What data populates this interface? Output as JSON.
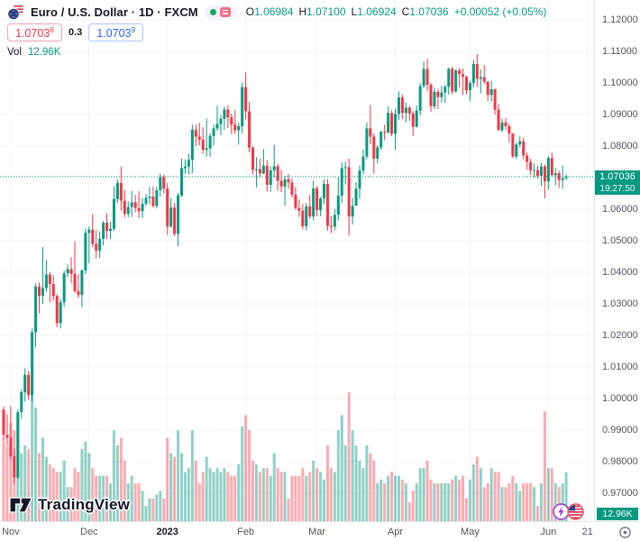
{
  "header": {
    "title_full": "Euro / U.S. Dollar · 1D · FXCM",
    "symbol": "Euro / U.S. Dollar",
    "interval": "1D",
    "exchange": "FXCM",
    "ohlc": {
      "o_label": "O",
      "o": "1.06984",
      "h_label": "H",
      "h": "1.07100",
      "l_label": "L",
      "l": "1.06924",
      "c_label": "C",
      "c": "1.07036",
      "change": "+0.00052 (+0.05%)"
    },
    "bid": {
      "value": "1.0703",
      "sup": "6"
    },
    "spread": "0.3",
    "ask": {
      "value": "1.0703",
      "sup": "9"
    },
    "vol_label": "Vol",
    "vol_value": "12.96K"
  },
  "last_price": {
    "value": "1.07036",
    "countdown": "19:27:50",
    "price": 1.07036
  },
  "volume_badge": "12.96K",
  "logo": {
    "text": "TradingView"
  },
  "event_markers": [
    {
      "type": "economic-event-lightning"
    },
    {
      "type": "economic-event-us-flag"
    }
  ],
  "colors": {
    "up": "#089981",
    "down": "#F23645",
    "vol_up": "rgba(8,153,129,0.45)",
    "vol_down": "rgba(242,54,69,0.42)",
    "grid": "#F0F3FA",
    "axis_text": "#51535F",
    "badge_bg": "#089981",
    "bid_red": "#F23645",
    "ask_blue": "#2962FF",
    "title_text": "#131722"
  },
  "chart_data": {
    "type": "candlestick",
    "symbol": "EURUSD",
    "title": "Euro / U.S. Dollar · 1D · FXCM",
    "interval": "1D",
    "has_volume_pane": true,
    "price_axis": {
      "top_price": 1.12,
      "bottom_price": 0.97,
      "tick_step": 0.01,
      "labels": [
        "1.12000",
        "1.11000",
        "1.10000",
        "1.09000",
        "1.08000",
        "1.07000",
        "1.06000",
        "1.05000",
        "1.04000",
        "1.03000",
        "1.02000",
        "1.01000",
        "1.00000",
        "0.99000",
        "0.98000",
        "0.97000"
      ]
    },
    "time_axis": {
      "ticks": [
        {
          "label": "Nov",
          "index": 2,
          "bold": false
        },
        {
          "label": "Dec",
          "index": 24,
          "bold": false
        },
        {
          "label": "2023",
          "index": 46,
          "bold": true
        },
        {
          "label": "Feb",
          "index": 68,
          "bold": false
        },
        {
          "label": "Mar",
          "index": 88,
          "bold": false
        },
        {
          "label": "Apr",
          "index": 110,
          "bold": false
        },
        {
          "label": "May",
          "index": 131,
          "bold": false
        },
        {
          "label": "Jun",
          "index": 153,
          "bold": false
        },
        {
          "label": "21",
          "index": 164,
          "bold": false
        }
      ]
    },
    "current": {
      "open": 1.06984,
      "high": 1.071,
      "low": 1.06924,
      "close": 1.07036,
      "volume_k": 12.96
    },
    "candles": [
      [
        0.9965,
        0.9975,
        0.9872,
        0.9885,
        22
      ],
      [
        0.9885,
        0.995,
        0.9853,
        0.9876,
        20
      ],
      [
        0.9876,
        0.9976,
        0.981,
        0.9817,
        26
      ],
      [
        0.9817,
        0.984,
        0.973,
        0.975,
        24
      ],
      [
        0.975,
        0.9965,
        0.9745,
        0.9957,
        28
      ],
      [
        0.9957,
        1.003,
        0.9935,
        1.002,
        18
      ],
      [
        1.002,
        1.0096,
        0.999,
        1.0075,
        20
      ],
      [
        1.0075,
        1.0088,
        0.9995,
        1.0011,
        19
      ],
      [
        1.0011,
        1.0222,
        0.999,
        1.021,
        35
      ],
      [
        1.021,
        1.0365,
        1.0163,
        1.0355,
        30
      ],
      [
        1.0355,
        1.0368,
        1.027,
        1.0325,
        18
      ],
      [
        1.0325,
        1.048,
        1.03,
        1.035,
        22
      ],
      [
        1.035,
        1.0438,
        1.0338,
        1.0393,
        17
      ],
      [
        1.0393,
        1.04,
        1.0305,
        1.0363,
        15
      ],
      [
        1.0363,
        1.039,
        1.031,
        1.0325,
        14
      ],
      [
        1.0325,
        1.033,
        1.0226,
        1.0239,
        13
      ],
      [
        1.0239,
        1.0315,
        1.0222,
        1.0305,
        13
      ],
      [
        1.0305,
        1.0405,
        1.029,
        1.0397,
        16
      ],
      [
        1.0397,
        1.0425,
        1.0385,
        1.041,
        9
      ],
      [
        1.041,
        1.0448,
        1.0365,
        1.0395,
        9
      ],
      [
        1.0395,
        1.0497,
        1.0335,
        1.034,
        14
      ],
      [
        1.034,
        1.0394,
        1.0319,
        1.0328,
        13
      ],
      [
        1.0328,
        1.041,
        1.029,
        1.0406,
        19
      ],
      [
        1.0406,
        1.0539,
        1.0395,
        1.0525,
        21
      ],
      [
        1.0525,
        1.0545,
        1.0428,
        1.0535,
        18
      ],
      [
        1.0535,
        1.0585,
        1.048,
        1.049,
        14
      ],
      [
        1.049,
        1.0533,
        1.0443,
        1.0468,
        12
      ],
      [
        1.0468,
        1.053,
        1.0445,
        1.0506,
        12
      ],
      [
        1.0506,
        1.0563,
        1.0485,
        1.0557,
        12
      ],
      [
        1.0557,
        1.0588,
        1.0505,
        1.0531,
        12
      ],
      [
        1.0531,
        1.056,
        1.0505,
        1.0538,
        10
      ],
      [
        1.0538,
        1.0673,
        1.053,
        1.0632,
        24
      ],
      [
        1.0632,
        1.0695,
        1.062,
        1.0683,
        20
      ],
      [
        1.0683,
        1.0735,
        1.0595,
        1.0627,
        22
      ],
      [
        1.0627,
        1.066,
        1.0575,
        1.0585,
        16
      ],
      [
        1.0585,
        1.0625,
        1.0575,
        1.0607,
        10
      ],
      [
        1.0607,
        1.0658,
        1.0575,
        1.0622,
        12
      ],
      [
        1.0622,
        1.0645,
        1.059,
        1.0604,
        10
      ],
      [
        1.0604,
        1.0657,
        1.0572,
        1.0594,
        10
      ],
      [
        1.0594,
        1.0635,
        1.0572,
        1.0617,
        8
      ],
      [
        1.0617,
        1.0648,
        1.061,
        1.0636,
        4
      ],
      [
        1.0636,
        1.067,
        1.0615,
        1.064,
        6
      ],
      [
        1.064,
        1.0672,
        1.0605,
        1.061,
        6
      ],
      [
        1.061,
        1.0671,
        1.0603,
        1.066,
        7
      ],
      [
        1.066,
        1.0713,
        1.064,
        1.0702,
        8
      ],
      [
        1.0702,
        1.071,
        1.065,
        1.0665,
        6
      ],
      [
        1.0665,
        1.0683,
        1.0519,
        1.0545,
        22
      ],
      [
        1.0545,
        1.0635,
        1.0542,
        1.0605,
        18
      ],
      [
        1.0605,
        1.062,
        1.0515,
        1.0522,
        17
      ],
      [
        1.0522,
        1.0652,
        1.0483,
        1.0644,
        24
      ],
      [
        1.0644,
        1.076,
        1.0639,
        1.073,
        18
      ],
      [
        1.073,
        1.0758,
        1.0712,
        1.0735,
        13
      ],
      [
        1.0735,
        1.0776,
        1.071,
        1.0756,
        14
      ],
      [
        1.0756,
        1.0868,
        1.0714,
        1.0852,
        24
      ],
      [
        1.0852,
        1.0868,
        1.08,
        1.083,
        16
      ],
      [
        1.083,
        1.0874,
        1.0802,
        1.082,
        10
      ],
      [
        1.082,
        1.086,
        1.0775,
        1.0788,
        13
      ],
      [
        1.0788,
        1.0887,
        1.0766,
        1.0793,
        17
      ],
      [
        1.0793,
        1.084,
        1.0766,
        1.0832,
        14
      ],
      [
        1.0832,
        1.0868,
        1.0802,
        1.0856,
        13
      ],
      [
        1.0856,
        1.0927,
        1.0848,
        1.087,
        14
      ],
      [
        1.087,
        1.0898,
        1.0835,
        1.0886,
        13
      ],
      [
        1.0886,
        1.0925,
        1.0852,
        1.0916,
        14
      ],
      [
        1.0916,
        1.093,
        1.0857,
        1.0891,
        13
      ],
      [
        1.0891,
        1.0903,
        1.0838,
        1.0868,
        12
      ],
      [
        1.0868,
        1.0913,
        1.0839,
        1.085,
        12
      ],
      [
        1.085,
        1.0874,
        1.0804,
        1.0863,
        15
      ],
      [
        1.0863,
        1.1001,
        1.084,
        1.0987,
        25
      ],
      [
        1.0987,
        1.1033,
        1.0885,
        1.091,
        28
      ],
      [
        1.091,
        1.094,
        1.078,
        1.0795,
        24
      ],
      [
        1.0795,
        1.08,
        1.071,
        1.0725,
        16
      ],
      [
        1.0725,
        1.0765,
        1.0669,
        1.0727,
        15
      ],
      [
        1.0727,
        1.076,
        1.07,
        1.0713,
        13
      ],
      [
        1.0713,
        1.0791,
        1.0711,
        1.0738,
        14
      ],
      [
        1.0738,
        1.0755,
        1.0656,
        1.0677,
        14
      ],
      [
        1.0677,
        1.0735,
        1.0655,
        1.0723,
        12
      ],
      [
        1.0723,
        1.0804,
        1.07,
        1.0736,
        18
      ],
      [
        1.0736,
        1.0744,
        1.0659,
        1.069,
        14
      ],
      [
        1.069,
        1.0724,
        1.0654,
        1.0672,
        13
      ],
      [
        1.0672,
        1.0706,
        1.0612,
        1.0695,
        13
      ],
      [
        1.0695,
        1.0712,
        1.0665,
        1.0685,
        6
      ],
      [
        1.0685,
        1.0697,
        1.0636,
        1.0646,
        12
      ],
      [
        1.0646,
        1.067,
        1.0598,
        1.0604,
        12
      ],
      [
        1.0604,
        1.063,
        1.0575,
        1.0595,
        12
      ],
      [
        1.0595,
        1.0618,
        1.0536,
        1.0546,
        14
      ],
      [
        1.0546,
        1.062,
        1.0533,
        1.0609,
        12
      ],
      [
        1.0609,
        1.0645,
        1.057,
        1.0577,
        13
      ],
      [
        1.0577,
        1.0691,
        1.0565,
        1.0666,
        16
      ],
      [
        1.0666,
        1.0674,
        1.0577,
        1.0597,
        14
      ],
      [
        1.0597,
        1.0639,
        1.0577,
        1.0634,
        13
      ],
      [
        1.0634,
        1.0694,
        1.0616,
        1.068,
        11
      ],
      [
        1.068,
        1.0695,
        1.0532,
        1.0547,
        20
      ],
      [
        1.0547,
        1.0578,
        1.0524,
        1.0545,
        14
      ],
      [
        1.0545,
        1.0601,
        1.0533,
        1.0582,
        13
      ],
      [
        1.0582,
        1.0701,
        1.0564,
        1.0643,
        24
      ],
      [
        1.0643,
        1.0749,
        1.062,
        1.073,
        28
      ],
      [
        1.073,
        1.075,
        1.0678,
        1.0733,
        20
      ],
      [
        1.0733,
        1.076,
        1.0516,
        1.0577,
        34
      ],
      [
        1.0577,
        1.0635,
        1.0551,
        1.0611,
        24
      ],
      [
        1.0611,
        1.0686,
        1.0611,
        1.0665,
        20
      ],
      [
        1.0665,
        1.0738,
        1.0633,
        1.0722,
        16
      ],
      [
        1.0722,
        1.0789,
        1.071,
        1.0767,
        14
      ],
      [
        1.0767,
        1.0875,
        1.0758,
        1.0856,
        20
      ],
      [
        1.0856,
        1.093,
        1.0805,
        1.083,
        18
      ],
      [
        1.083,
        1.084,
        1.0713,
        1.076,
        16
      ],
      [
        1.076,
        1.0803,
        1.0745,
        1.0796,
        10
      ],
      [
        1.0796,
        1.0848,
        1.0789,
        1.0845,
        11
      ],
      [
        1.0845,
        1.0868,
        1.0819,
        1.0843,
        10
      ],
      [
        1.0843,
        1.0926,
        1.084,
        1.0905,
        12
      ],
      [
        1.0905,
        1.0913,
        1.0831,
        1.0839,
        13
      ],
      [
        1.0839,
        1.0918,
        1.0788,
        1.0902,
        12
      ],
      [
        1.0902,
        1.0973,
        1.0883,
        1.0954,
        12
      ],
      [
        1.0954,
        1.0963,
        1.0885,
        1.0905,
        11
      ],
      [
        1.0905,
        1.0938,
        1.0875,
        1.0922,
        10
      ],
      [
        1.0922,
        1.0928,
        1.088,
        1.0903,
        5
      ],
      [
        1.0903,
        1.0911,
        1.0832,
        1.0861,
        8
      ],
      [
        1.0861,
        1.0929,
        1.0859,
        1.0912,
        10
      ],
      [
        1.0912,
        1.1,
        1.0897,
        1.099,
        14
      ],
      [
        1.099,
        1.1068,
        1.0983,
        1.1045,
        14
      ],
      [
        1.1045,
        1.1076,
        1.0974,
        1.0994,
        16
      ],
      [
        1.0994,
        1.1,
        1.0909,
        1.0926,
        11
      ],
      [
        1.0926,
        1.0985,
        1.0917,
        1.0972,
        10
      ],
      [
        1.0972,
        1.0982,
        1.0918,
        1.0955,
        10
      ],
      [
        1.0955,
        1.0991,
        1.0938,
        1.097,
        10
      ],
      [
        1.097,
        1.0995,
        1.0937,
        1.0988,
        10
      ],
      [
        1.0988,
        1.1049,
        1.0963,
        1.1045,
        10
      ],
      [
        1.1045,
        1.1052,
        1.0964,
        1.0973,
        11
      ],
      [
        1.0973,
        1.1043,
        1.0969,
        1.104,
        12
      ],
      [
        1.104,
        1.1047,
        1.0986,
        1.1028,
        11
      ],
      [
        1.1028,
        1.1046,
        1.0962,
        1.1019,
        12
      ],
      [
        1.1019,
        1.1023,
        1.0964,
        1.0977,
        6
      ],
      [
        1.0977,
        1.1007,
        1.0942,
        1.1,
        11
      ],
      [
        1.1,
        1.1073,
        1.0987,
        1.106,
        15
      ],
      [
        1.106,
        1.1091,
        1.0987,
        1.1013,
        17
      ],
      [
        1.1013,
        1.1043,
        1.0967,
        1.1018,
        14
      ],
      [
        1.1018,
        1.1056,
        1.0996,
        1.1004,
        9
      ],
      [
        1.1004,
        1.1006,
        1.0942,
        1.0962,
        10
      ],
      [
        1.0962,
        1.1007,
        1.094,
        1.098,
        14
      ],
      [
        1.098,
        1.0982,
        1.09,
        1.0915,
        13
      ],
      [
        1.0915,
        1.0932,
        1.0849,
        1.085,
        13
      ],
      [
        1.085,
        1.0887,
        1.0845,
        1.0875,
        9
      ],
      [
        1.0875,
        1.089,
        1.0852,
        1.0863,
        9
      ],
      [
        1.0863,
        1.0872,
        1.081,
        1.0839,
        10
      ],
      [
        1.0839,
        1.0842,
        1.0762,
        1.0767,
        12
      ],
      [
        1.0767,
        1.0812,
        1.076,
        1.0805,
        10
      ],
      [
        1.0805,
        1.0831,
        1.0795,
        1.0815,
        8
      ],
      [
        1.0815,
        1.0827,
        1.0758,
        1.077,
        10
      ],
      [
        1.077,
        1.078,
        1.0725,
        1.075,
        10
      ],
      [
        1.075,
        1.076,
        1.0708,
        1.0723,
        10
      ],
      [
        1.0723,
        1.0745,
        1.07,
        1.0724,
        9
      ],
      [
        1.0724,
        1.0737,
        1.0697,
        1.0706,
        4
      ],
      [
        1.0706,
        1.0746,
        1.0674,
        1.0735,
        10
      ],
      [
        1.0735,
        1.0742,
        1.0635,
        1.0688,
        29
      ],
      [
        1.0688,
        1.0768,
        1.0661,
        1.0762,
        14
      ],
      [
        1.0762,
        1.0779,
        1.0704,
        1.0708,
        14
      ],
      [
        1.0708,
        1.0732,
        1.0675,
        1.0714,
        10
      ],
      [
        1.0714,
        1.0722,
        1.0667,
        1.0692,
        9
      ],
      [
        1.0692,
        1.0738,
        1.0665,
        1.0698,
        10
      ],
      [
        1.06984,
        1.071,
        1.06924,
        1.07036,
        12.96
      ]
    ]
  }
}
